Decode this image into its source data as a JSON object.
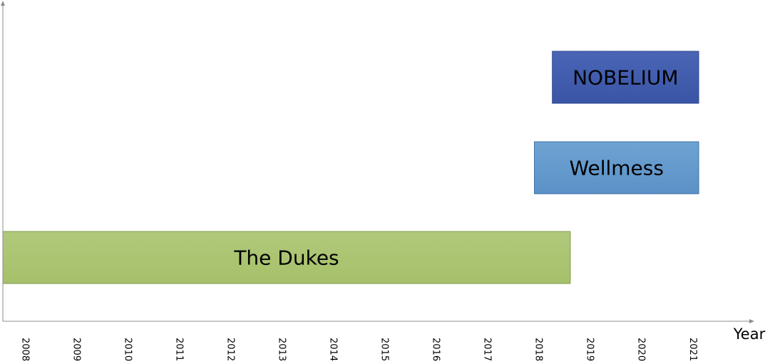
{
  "chart_data": {
    "type": "bar",
    "orientation": "horizontal",
    "title": "",
    "xlabel": "Year",
    "ylabel": "",
    "x_ticks": [
      "2008",
      "2009",
      "2010",
      "2011",
      "2012",
      "2013",
      "2014",
      "2015",
      "2016",
      "2017",
      "2018",
      "2019",
      "2020",
      "2021"
    ],
    "xlim": [
      2007.55,
      2022.1
    ],
    "grid": false,
    "legend": "none",
    "series": [
      {
        "label": "The Dukes",
        "start": 2007.55,
        "end": 2018.6,
        "color": "#9bbb59"
      },
      {
        "label": "Wellmess",
        "start": 2017.9,
        "end": 2021.1,
        "color": "#4f81bd"
      },
      {
        "label": "NOBELIUM",
        "start": 2018.25,
        "end": 2021.1,
        "color": "#3f5aa9"
      }
    ]
  }
}
